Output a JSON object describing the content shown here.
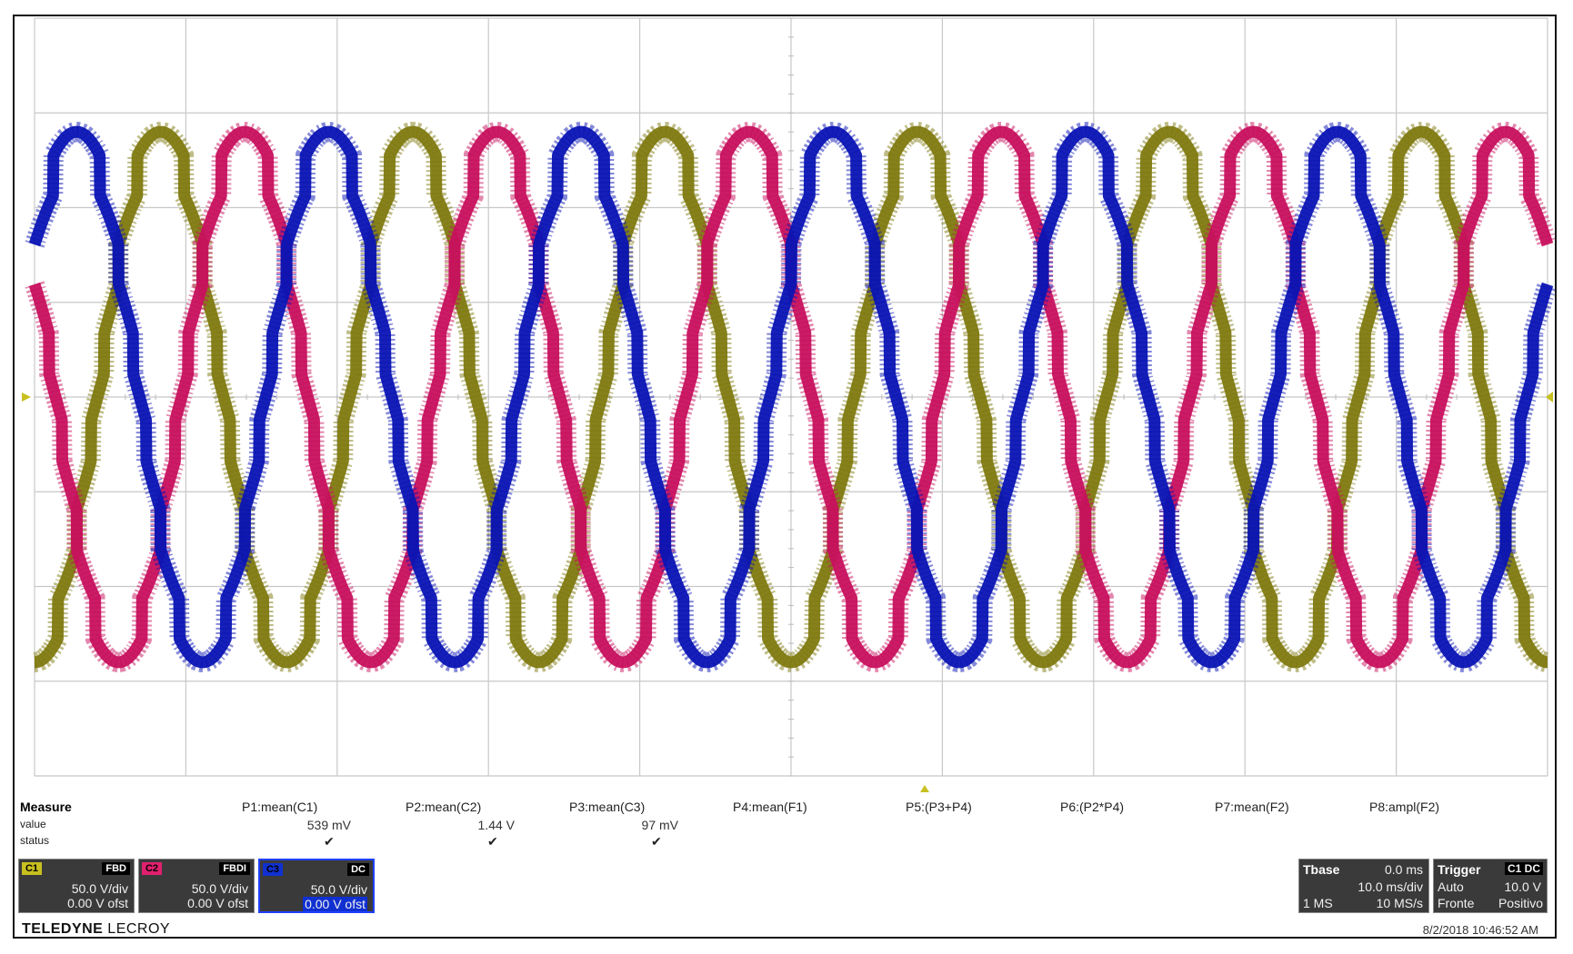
{
  "chart_data": {
    "type": "line",
    "title": "",
    "xlabel": "",
    "ylabel": "",
    "xlim": [
      -50,
      50
    ],
    "ylim": [
      -200,
      200
    ],
    "grid": true,
    "series": [
      {
        "name": "C1",
        "color": "#7f7a10",
        "amplitude_v": 140,
        "frequency_hz": 60,
        "phase_deg": -90
      },
      {
        "name": "C2",
        "color": "#c8105e",
        "amplitude_v": 140,
        "frequency_hz": 60,
        "phase_deg": 150
      },
      {
        "name": "C3",
        "color": "#0a14b4",
        "amplitude_v": 140,
        "frequency_hz": 60,
        "phase_deg": 30
      }
    ]
  },
  "measure": {
    "title": "Measure",
    "row_value": "value",
    "row_status": "status",
    "params": [
      {
        "name": "P1:mean(C1)",
        "value": "539 mV",
        "status": "✔"
      },
      {
        "name": "P2:mean(C2)",
        "value": "1.44 V",
        "status": "✔"
      },
      {
        "name": "P3:mean(C3)",
        "value": "97 mV",
        "status": "✔"
      },
      {
        "name": "P4:mean(F1)",
        "value": "",
        "status": ""
      },
      {
        "name": "P5:(P3+P4)",
        "value": "",
        "status": ""
      },
      {
        "name": "P6:(P2*P4)",
        "value": "",
        "status": ""
      },
      {
        "name": "P7:mean(F2)",
        "value": "",
        "status": ""
      },
      {
        "name": "P8:ampl(F2)",
        "value": "",
        "status": ""
      }
    ]
  },
  "channels": [
    {
      "tag": "C1",
      "coupling": "FBD",
      "scale": "50.0 V/div",
      "offset": "0.00 V ofst",
      "color": "#c8c020"
    },
    {
      "tag": "C2",
      "coupling": "FBDI",
      "scale": "50.0 V/div",
      "offset": "0.00 V ofst",
      "color": "#e0206e"
    },
    {
      "tag": "C3",
      "coupling": "DC",
      "scale": "50.0 V/div",
      "offset": "0.00 V ofst",
      "color": "#1030d0"
    }
  ],
  "timebase": {
    "title": "Tbase",
    "delay": "0.0 ms",
    "scale": "10.0 ms/div",
    "samples": "1 MS",
    "rate": "10 MS/s"
  },
  "trigger": {
    "title": "Trigger",
    "channel": "C1 DC",
    "mode": "Auto",
    "level": "10.0 V",
    "type": "Fronte",
    "slope": "Positivo"
  },
  "brand": {
    "bold": "TELEDYNE",
    "light": " LECROY"
  },
  "timestamp": "8/2/2018 10:46:52 AM"
}
